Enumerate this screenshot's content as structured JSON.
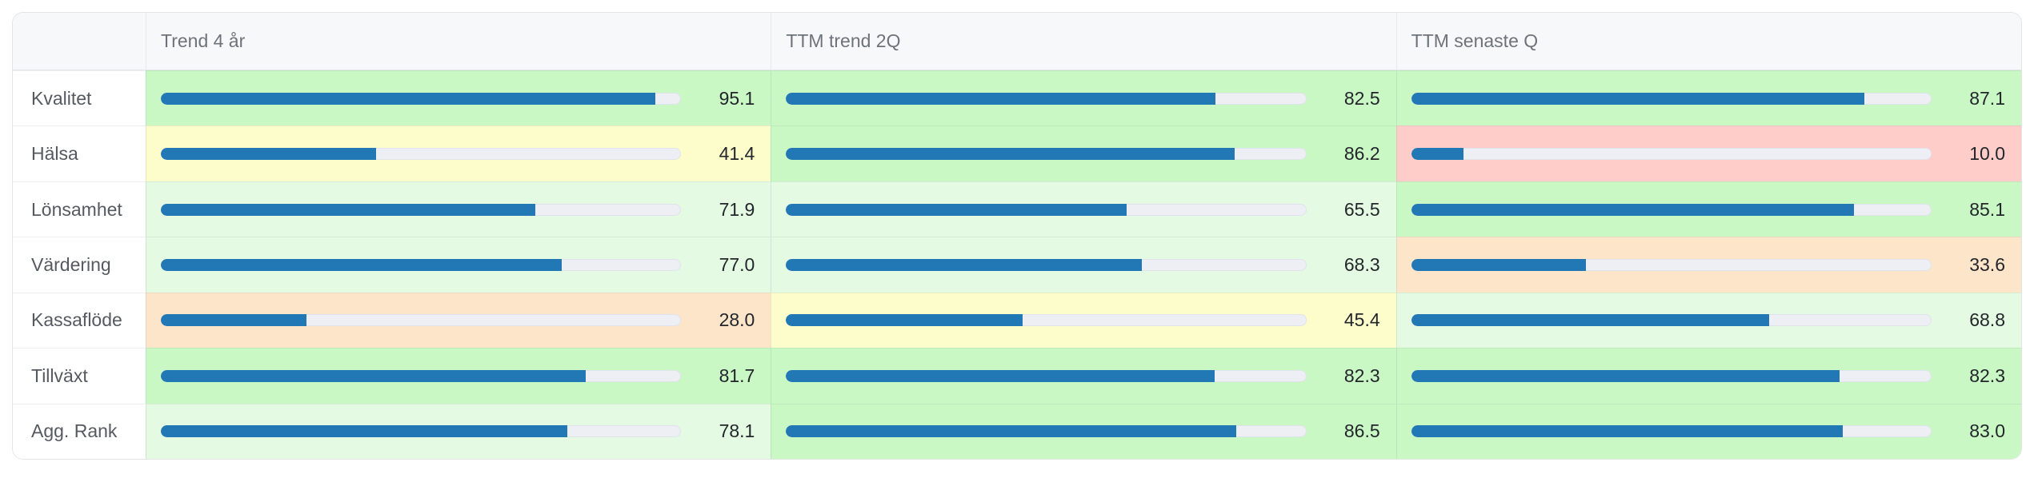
{
  "table": {
    "corner_label": "",
    "columns": [
      "Trend 4 år",
      "TTM trend 2Q",
      "TTM senaste Q"
    ],
    "rows": [
      {
        "label": "Kvalitet",
        "cells": [
          {
            "value": "95.1",
            "pct": 95.1,
            "tone": "green"
          },
          {
            "value": "82.5",
            "pct": 82.5,
            "tone": "green"
          },
          {
            "value": "87.1",
            "pct": 87.1,
            "tone": "green"
          }
        ]
      },
      {
        "label": "Hälsa",
        "cells": [
          {
            "value": "41.4",
            "pct": 41.4,
            "tone": "yellow"
          },
          {
            "value": "86.2",
            "pct": 86.2,
            "tone": "green"
          },
          {
            "value": "10.0",
            "pct": 10.0,
            "tone": "red"
          }
        ]
      },
      {
        "label": "Lönsamhet",
        "cells": [
          {
            "value": "71.9",
            "pct": 71.9,
            "tone": "lightgreen"
          },
          {
            "value": "65.5",
            "pct": 65.5,
            "tone": "lightgreen"
          },
          {
            "value": "85.1",
            "pct": 85.1,
            "tone": "green"
          }
        ]
      },
      {
        "label": "Värdering",
        "cells": [
          {
            "value": "77.0",
            "pct": 77.0,
            "tone": "lightgreen"
          },
          {
            "value": "68.3",
            "pct": 68.3,
            "tone": "lightgreen"
          },
          {
            "value": "33.6",
            "pct": 33.6,
            "tone": "orange"
          }
        ]
      },
      {
        "label": "Kassaflöde",
        "cells": [
          {
            "value": "28.0",
            "pct": 28.0,
            "tone": "orange"
          },
          {
            "value": "45.4",
            "pct": 45.4,
            "tone": "yellow"
          },
          {
            "value": "68.8",
            "pct": 68.8,
            "tone": "lightgreen"
          }
        ]
      },
      {
        "label": "Tillväxt",
        "cells": [
          {
            "value": "81.7",
            "pct": 81.7,
            "tone": "green"
          },
          {
            "value": "82.3",
            "pct": 82.3,
            "tone": "green"
          },
          {
            "value": "82.3",
            "pct": 82.3,
            "tone": "green"
          }
        ]
      },
      {
        "label": "Agg. Rank",
        "cells": [
          {
            "value": "78.1",
            "pct": 78.1,
            "tone": "lightgreen"
          },
          {
            "value": "86.5",
            "pct": 86.5,
            "tone": "green"
          },
          {
            "value": "83.0",
            "pct": 83.0,
            "tone": "green"
          }
        ]
      }
    ]
  },
  "colors": {
    "bar_fill": "#2278b5",
    "bar_track": "#edeff5",
    "tones": {
      "green": "#c9f8c5",
      "lightgreen": "#e4fae2",
      "yellow": "#fdfccb",
      "orange": "#fce5c9",
      "red": "#fecdca"
    }
  },
  "chart_data": {
    "type": "table",
    "title": "",
    "categories": [
      "Kvalitet",
      "Hälsa",
      "Lönsamhet",
      "Värdering",
      "Kassaflöde",
      "Tillväxt",
      "Agg. Rank"
    ],
    "series": [
      {
        "name": "Trend 4 år",
        "values": [
          95.1,
          41.4,
          71.9,
          77.0,
          28.0,
          81.7,
          78.1
        ]
      },
      {
        "name": "TTM trend 2Q",
        "values": [
          82.5,
          86.2,
          65.5,
          68.3,
          45.4,
          82.3,
          86.5
        ]
      },
      {
        "name": "TTM senaste Q",
        "values": [
          87.1,
          10.0,
          85.1,
          33.6,
          68.8,
          82.3,
          83.0
        ]
      }
    ],
    "value_range": [
      0,
      100
    ],
    "cell_style": "horizontal data bar over heatmap background (green/yellow/orange/red by score)",
    "legend_position": "none",
    "grid": false
  }
}
